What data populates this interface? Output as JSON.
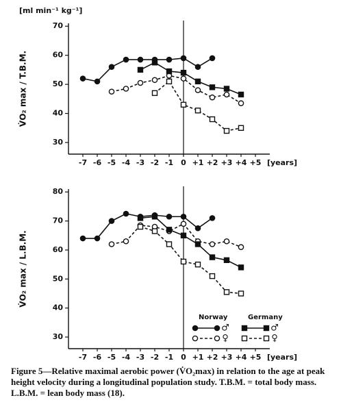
{
  "chart_data": [
    {
      "type": "line",
      "ylabel": "V̇O₂ max / T.B.M.",
      "yunit": "[ml min⁻¹ kg⁻¹]",
      "xlabel": "[years]",
      "x": [
        -7,
        -6,
        -5,
        -4,
        -3,
        -2,
        -1,
        0,
        1,
        2,
        3,
        4
      ],
      "xlim": [
        -8,
        6
      ],
      "xticks": [
        -7,
        -6,
        -5,
        -4,
        -3,
        -2,
        -1,
        0,
        {
          "value": 1,
          "label": "+1"
        },
        {
          "value": 2,
          "label": "+2"
        },
        {
          "value": 3,
          "label": "+3"
        },
        {
          "value": 4,
          "label": "+4"
        },
        {
          "value": 5,
          "label": "+5"
        }
      ],
      "ylim": [
        26,
        71
      ],
      "yticks": [
        30,
        40,
        50,
        60,
        70
      ],
      "vline": 0,
      "series": [
        {
          "marker": "circle",
          "filled": true,
          "dashed": false,
          "color": "#111111",
          "values": [
            52,
            51,
            56,
            58.5,
            58.5,
            58.5,
            58.5,
            59,
            56,
            59,
            null,
            null
          ]
        },
        {
          "marker": "circle",
          "filled": false,
          "dashed": true,
          "color": "#111111",
          "values": [
            null,
            null,
            47.5,
            48.5,
            50.5,
            51.5,
            53,
            52,
            48,
            45.5,
            46.5,
            43.5
          ]
        },
        {
          "marker": "square",
          "filled": true,
          "dashed": false,
          "color": "#111111",
          "values": [
            null,
            null,
            null,
            null,
            55,
            57.5,
            54.5,
            54,
            51,
            49,
            48.5,
            46.5
          ]
        },
        {
          "marker": "square",
          "filled": false,
          "dashed": true,
          "color": "#111111",
          "values": [
            null,
            null,
            null,
            null,
            null,
            47,
            51,
            43,
            41,
            38,
            34,
            35
          ]
        }
      ]
    },
    {
      "type": "line",
      "ylabel": "V̇O₂ max / L.B.M.",
      "xlabel": "[years]",
      "x": [
        -7,
        -6,
        -5,
        -4,
        -3,
        -2,
        -1,
        0,
        1,
        2,
        3,
        4
      ],
      "xlim": [
        -8,
        6
      ],
      "xticks": [
        -7,
        -6,
        -5,
        -4,
        -3,
        -2,
        -1,
        0,
        {
          "value": 1,
          "label": "+1"
        },
        {
          "value": 2,
          "label": "+2"
        },
        {
          "value": 3,
          "label": "+3"
        },
        {
          "value": 4,
          "label": "+4"
        },
        {
          "value": 5,
          "label": "+5"
        }
      ],
      "ylim": [
        26,
        81
      ],
      "yticks": [
        30,
        40,
        50,
        60,
        70,
        80
      ],
      "vline": 0,
      "legend": {
        "columns": [
          "Norway",
          "Germany"
        ],
        "rows": [
          "♂",
          "♀"
        ]
      },
      "series": [
        {
          "marker": "circle",
          "filled": true,
          "dashed": false,
          "color": "#111111",
          "values": [
            64,
            64,
            70,
            72.5,
            71.5,
            72,
            71.5,
            71.5,
            67.5,
            71,
            null,
            null
          ]
        },
        {
          "marker": "circle",
          "filled": false,
          "dashed": true,
          "color": "#111111",
          "values": [
            null,
            null,
            62,
            63,
            68.5,
            68,
            66.5,
            69,
            63,
            62,
            63,
            61
          ]
        },
        {
          "marker": "square",
          "filled": true,
          "dashed": false,
          "color": "#111111",
          "values": [
            null,
            null,
            null,
            null,
            71,
            71.5,
            67,
            65,
            62,
            57.5,
            56.5,
            54
          ]
        },
        {
          "marker": "square",
          "filled": false,
          "dashed": true,
          "color": "#111111",
          "values": [
            null,
            null,
            null,
            null,
            68,
            66.5,
            62,
            56,
            55,
            51,
            45.5,
            45
          ]
        }
      ]
    }
  ],
  "caption": "Figure 5—Relative maximal aerobic power (V̇O₂max) in relation to the age at peak height velocity during a longitudinal population study. T.B.M. = total body mass. L.B.M. = lean body mass (18)."
}
